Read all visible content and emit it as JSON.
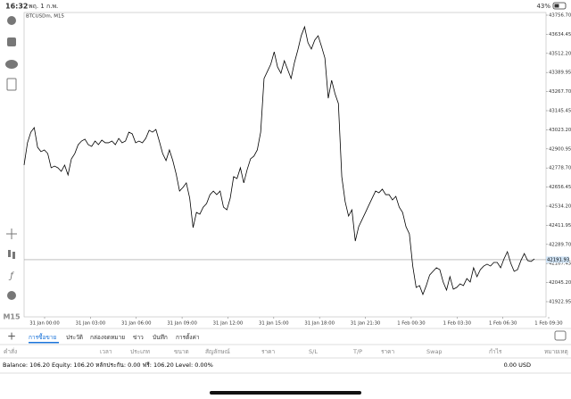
{
  "status_bar": {
    "time": "16:32",
    "date": "พฤ. 1 ก.พ.",
    "battery": "43%"
  },
  "toolbar": {
    "timeframe": "M15"
  },
  "chart_data": {
    "type": "line",
    "title": "BTCUSDm, M15",
    "color": "#000000",
    "values": [
      42797,
      42940,
      43008,
      43037,
      42911,
      42883,
      42894,
      42871,
      42780,
      42791,
      42780,
      42757,
      42797,
      42734,
      42837,
      42871,
      42928,
      42951,
      42963,
      42928,
      42917,
      42951,
      42928,
      42957,
      42940,
      42940,
      42951,
      42928,
      42968,
      42940,
      42951,
      43008,
      42997,
      42940,
      42951,
      42940,
      42968,
      43020,
      43008,
      43025,
      42951,
      42871,
      42826,
      42894,
      42826,
      42740,
      42631,
      42654,
      42683,
      42586,
      42397,
      42494,
      42483,
      42528,
      42551,
      42608,
      42631,
      42608,
      42631,
      42528,
      42511,
      42586,
      42723,
      42711,
      42780,
      42683,
      42768,
      42837,
      42854,
      42894,
      43008,
      43351,
      43397,
      43443,
      43522,
      43425,
      43385,
      43465,
      43408,
      43351,
      43454,
      43534,
      43625,
      43682,
      43580,
      43540,
      43597,
      43625,
      43557,
      43483,
      43225,
      43340,
      43254,
      43191,
      42723,
      42563,
      42471,
      42511,
      42311,
      42403,
      42448,
      42494,
      42540,
      42586,
      42631,
      42620,
      42643,
      42608,
      42608,
      42574,
      42597,
      42528,
      42494,
      42403,
      42357,
      42151,
      42014,
      42026,
      41969,
      42026,
      42094,
      42117,
      42140,
      42128,
      42049,
      41997,
      42083,
      42003,
      42014,
      42037,
      42026,
      42071,
      42049,
      42140,
      42083,
      42128,
      42151,
      42163,
      42151,
      42174,
      42174,
      42140,
      42197,
      42243,
      42169,
      42117,
      42128,
      42186,
      42231,
      42186,
      42180,
      42197
    ],
    "x_tick_labels": [
      "31 Jan 00:00",
      "31 Jan 03:00",
      "31 Jan 06:00",
      "31 Jan 09:00",
      "31 Jan 12:00",
      "31 Jan 15:00",
      "31 Jan 18:00",
      "31 Jan 21:30",
      "1 Feb 00:30",
      "1 Feb 03:30",
      "1 Feb 06:30",
      "1 Feb 09:30"
    ],
    "ylim": [
      41825.7,
      43773.8
    ],
    "yticks": [
      {
        "value": 43756.7,
        "label": "43756.70"
      },
      43634.45,
      {
        "value": 43512.2,
        "label": "43512.20"
      },
      43389.95,
      {
        "value": 43267.7,
        "label": "43267.70"
      },
      43145.45,
      {
        "value": 43023.2,
        "label": "43023.20"
      },
      42900.95,
      {
        "value": 42778.7,
        "label": "42778.70"
      },
      42656.45,
      {
        "value": 42534.2,
        "label": "42534.20"
      },
      42411.95,
      {
        "value": 42289.7,
        "label": "42289.70"
      },
      42167.45,
      {
        "value": 42045.2,
        "label": "42045.20"
      },
      41922.95
    ],
    "current_price": 42191.93
  },
  "tabs": [
    "การซื้อขาย",
    "ประวัติ",
    "กล่องจดหมาย",
    "ข่าว",
    "บันทึก",
    "การตั้งค่า"
  ],
  "active_tab": 0,
  "columns": [
    "คำสั่ง",
    "เวลา",
    "ประเภท",
    "ขนาด",
    "สัญลักษณ์",
    "ราคา",
    "S/L",
    "T/P",
    "ราคา",
    "Swap",
    "กำไร",
    "หมายเหตุ"
  ],
  "account": {
    "summary": "Balance: 106.20 Equity: 106.20 หลักประกัน: 0.00 ฟรี: 106.20 Level: 0.00%",
    "total": "0.00 USD"
  }
}
